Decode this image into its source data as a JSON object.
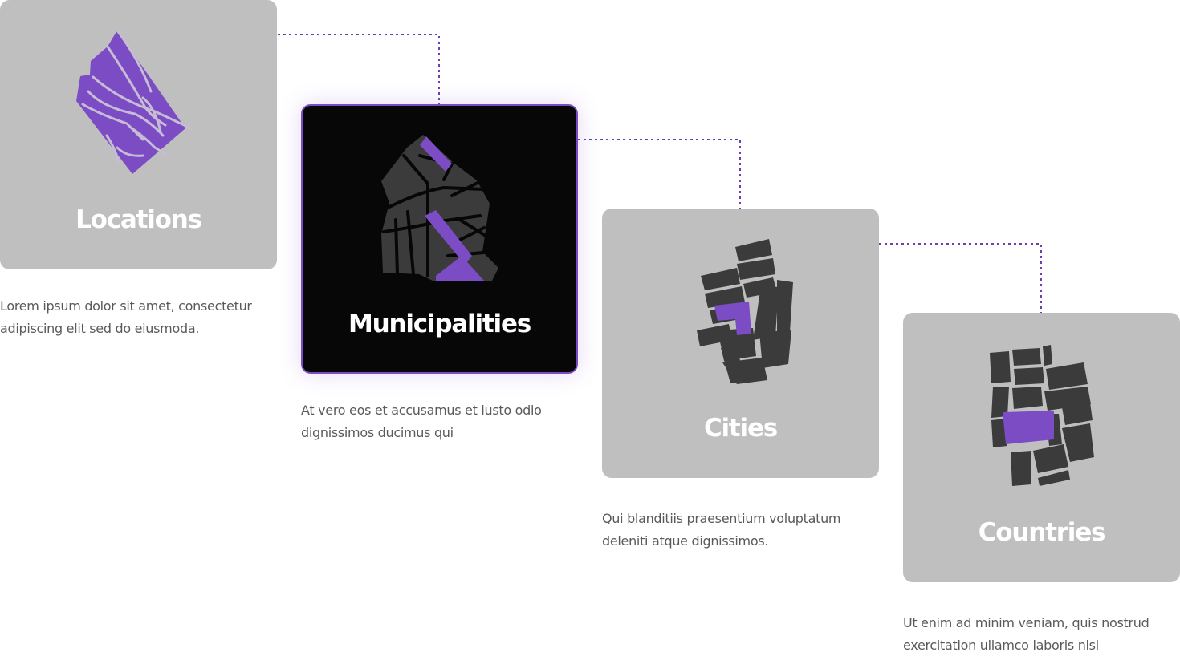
{
  "accent_color": "#7b4cc4",
  "card_color": "#bfbfbf",
  "active_card_color": "#070708",
  "steps": [
    {
      "title": "Locations",
      "description": "Lorem ipsum dolor sit amet, consectetur adipiscing elit sed do eiusmoda.",
      "icon": "locations-map-icon",
      "active": false
    },
    {
      "title": "Municipalities",
      "description": "At vero eos et accusamus et iusto odio dignissimos ducimus qui",
      "icon": "municipalities-map-icon",
      "active": true
    },
    {
      "title": "Cities",
      "description": "Qui blanditiis praesentium voluptatum deleniti atque dignissimos.",
      "icon": "cities-map-icon",
      "active": false
    },
    {
      "title": "Countries",
      "description": "Ut enim ad minim veniam, quis nostrud exercitation ullamco laboris nisi",
      "icon": "countries-map-icon",
      "active": false
    }
  ]
}
